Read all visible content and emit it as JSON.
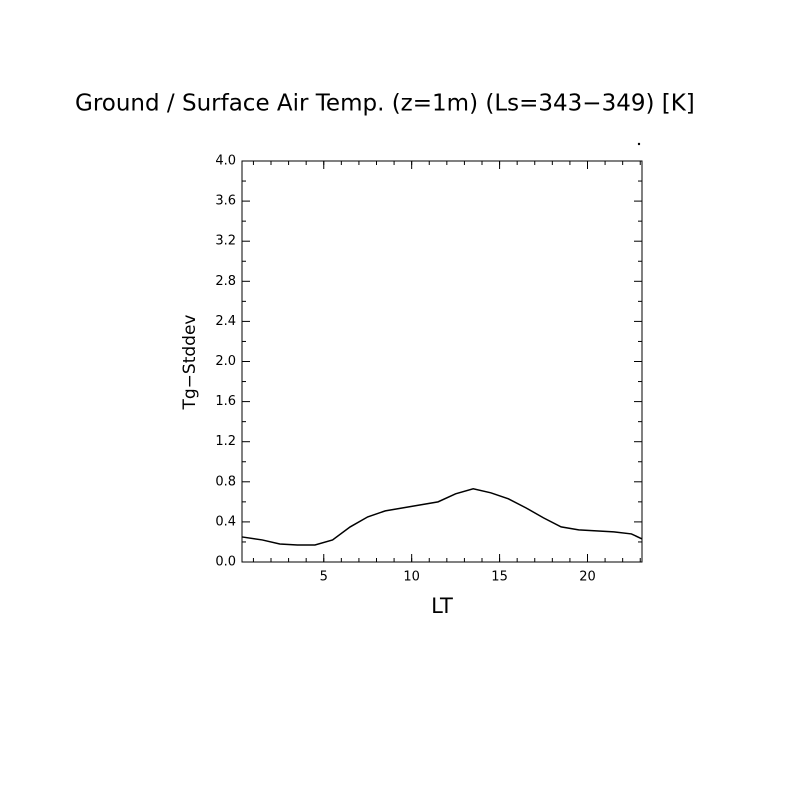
{
  "chart_data": {
    "type": "line",
    "title": "Ground / Surface Air Temp. (z=1m) (Ls=343−349) [K]",
    "x_label": "LT",
    "y_label": "Tg−Stddev",
    "x": [
      0.35,
      1.5,
      2.5,
      3.5,
      4.5,
      5.5,
      6.5,
      7.5,
      8.5,
      9.5,
      10.5,
      11.5,
      12.5,
      13.5,
      14.5,
      15.5,
      16.5,
      17.5,
      18.5,
      19.5,
      20.5,
      21.5,
      22.5,
      23.1
    ],
    "series": [
      {
        "color": "#000000",
        "values": [
          0.25,
          0.22,
          0.18,
          0.17,
          0.17,
          0.22,
          0.35,
          0.45,
          0.51,
          0.54,
          0.57,
          0.6,
          0.68,
          0.73,
          0.69,
          0.63,
          0.54,
          0.44,
          0.35,
          0.32,
          0.31,
          0.3,
          0.28,
          0.23
        ]
      }
    ],
    "xlim": [
      0.35,
      23.1
    ],
    "xticks": [
      5,
      10,
      15,
      20
    ],
    "ylim": [
      0,
      4
    ],
    "yticks": [
      {
        "value": 0,
        "label": "0.0"
      },
      0.4,
      0.8,
      1.2,
      1.6,
      {
        "value": 2,
        "label": "2.0"
      },
      2.4,
      2.8,
      3.2,
      3.6,
      {
        "value": 4,
        "label": "4.0"
      }
    ]
  }
}
